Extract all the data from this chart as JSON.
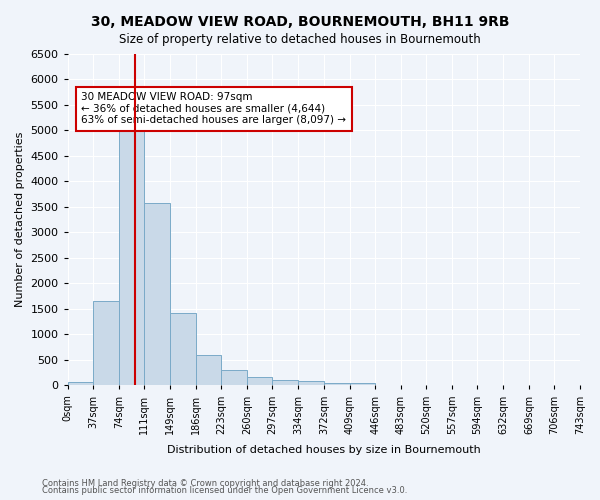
{
  "title": "30, MEADOW VIEW ROAD, BOURNEMOUTH, BH11 9RB",
  "subtitle": "Size of property relative to detached houses in Bournemouth",
  "xlabel": "Distribution of detached houses by size in Bournemouth",
  "ylabel": "Number of detached properties",
  "bar_color": "#c9d9e8",
  "bar_edge_color": "#7aaac8",
  "bg_color": "#f0f4fa",
  "grid_color": "#ffffff",
  "vline_x": 97,
  "vline_color": "#cc0000",
  "bin_edges": [
    0,
    37,
    74,
    111,
    149,
    186,
    223,
    260,
    297,
    334,
    372,
    409,
    446,
    483,
    520,
    557,
    594,
    632,
    669,
    706,
    743
  ],
  "bin_labels": [
    "0sqm",
    "37sqm",
    "74sqm",
    "111sqm",
    "149sqm",
    "186sqm",
    "223sqm",
    "260sqm",
    "297sqm",
    "334sqm",
    "372sqm",
    "409sqm",
    "446sqm",
    "483sqm",
    "520sqm",
    "557sqm",
    "594sqm",
    "632sqm",
    "669sqm",
    "706sqm",
    "743sqm"
  ],
  "bar_heights": [
    70,
    1650,
    5060,
    3580,
    1420,
    600,
    305,
    155,
    110,
    80,
    50,
    40,
    0,
    0,
    0,
    0,
    0,
    0,
    0,
    0
  ],
  "ylim": [
    0,
    6500
  ],
  "yticks": [
    0,
    500,
    1000,
    1500,
    2000,
    2500,
    3000,
    3500,
    4000,
    4500,
    5000,
    5500,
    6000,
    6500
  ],
  "annotation_text": "30 MEADOW VIEW ROAD: 97sqm\n← 36% of detached houses are smaller (4,644)\n63% of semi-detached houses are larger (8,097) →",
  "annotation_box_color": "#ffffff",
  "annotation_box_edge": "#cc0000",
  "footnote1": "Contains HM Land Registry data © Crown copyright and database right 2024.",
  "footnote2": "Contains public sector information licensed under the Open Government Licence v3.0."
}
